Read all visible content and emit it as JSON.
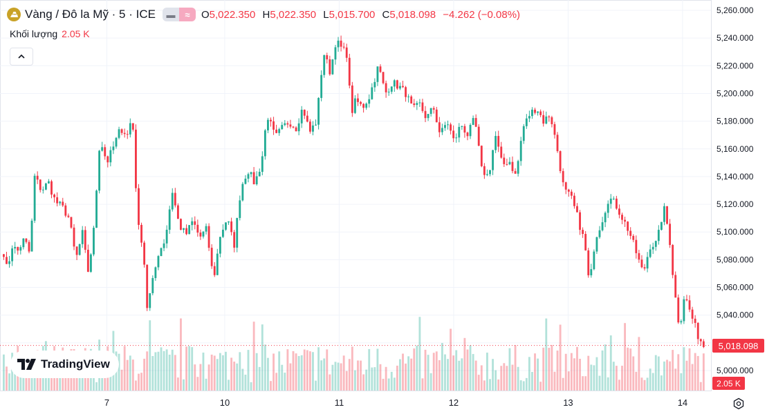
{
  "legend": {
    "symbol_icon": "gold-bars-icon",
    "title": "Vàng / Đô la Mỹ · 5 · ICE",
    "open_label": "O",
    "open": "5,022.350",
    "high_label": "H",
    "high": "5,022.350",
    "low_label": "L",
    "low": "5,015.700",
    "close_label": "C",
    "close": "5,018.098",
    "change": "−4.262 (−0.08%)"
  },
  "volume_legend": {
    "label": "Khối lượng",
    "value": "2.05 K"
  },
  "brand": {
    "name": "TradingView"
  },
  "last_price_tag": "5,018.098",
  "last_volume_tag": "2.05 K",
  "colors": {
    "up": "#22ab94",
    "down": "#f23645",
    "grid": "#f0f3fa",
    "text": "#131722"
  },
  "chart_data": {
    "type": "candlestick",
    "interval": "5",
    "y_ticks": [
      "5,000.000",
      "5,020.000",
      "5,040.000",
      "5,060.000",
      "5,080.000",
      "5,100.000",
      "5,120.000",
      "5,140.000",
      "5,160.000",
      "5,180.000",
      "5,200.000",
      "5,220.000",
      "5,240.000",
      "5,260.000"
    ],
    "ylim": [
      5000,
      5260
    ],
    "x_ticks": [
      "7",
      "10",
      "11",
      "12",
      "13",
      "14"
    ],
    "x_tick_positions": [
      0.15,
      0.32,
      0.485,
      0.65,
      0.815,
      0.98
    ],
    "close_series": [
      {
        "t": 0.0,
        "v": 5085
      },
      {
        "t": 0.005,
        "v": 5072
      },
      {
        "t": 0.012,
        "v": 5090
      },
      {
        "t": 0.02,
        "v": 5086
      },
      {
        "t": 0.03,
        "v": 5095
      },
      {
        "t": 0.038,
        "v": 5084
      },
      {
        "t": 0.045,
        "v": 5140
      },
      {
        "t": 0.055,
        "v": 5130
      },
      {
        "t": 0.065,
        "v": 5136
      },
      {
        "t": 0.075,
        "v": 5122
      },
      {
        "t": 0.085,
        "v": 5118
      },
      {
        "t": 0.095,
        "v": 5110
      },
      {
        "t": 0.105,
        "v": 5080
      },
      {
        "t": 0.115,
        "v": 5100
      },
      {
        "t": 0.122,
        "v": 5070
      },
      {
        "t": 0.13,
        "v": 5095
      },
      {
        "t": 0.14,
        "v": 5168
      },
      {
        "t": 0.15,
        "v": 5150
      },
      {
        "t": 0.16,
        "v": 5162
      },
      {
        "t": 0.17,
        "v": 5175
      },
      {
        "t": 0.18,
        "v": 5170
      },
      {
        "t": 0.187,
        "v": 5185
      },
      {
        "t": 0.195,
        "v": 5105
      },
      {
        "t": 0.203,
        "v": 5090
      },
      {
        "t": 0.208,
        "v": 5045
      },
      {
        "t": 0.215,
        "v": 5060
      },
      {
        "t": 0.225,
        "v": 5085
      },
      {
        "t": 0.235,
        "v": 5095
      },
      {
        "t": 0.245,
        "v": 5130
      },
      {
        "t": 0.255,
        "v": 5105
      },
      {
        "t": 0.265,
        "v": 5098
      },
      {
        "t": 0.275,
        "v": 5108
      },
      {
        "t": 0.285,
        "v": 5096
      },
      {
        "t": 0.295,
        "v": 5102
      },
      {
        "t": 0.305,
        "v": 5065
      },
      {
        "t": 0.315,
        "v": 5098
      },
      {
        "t": 0.325,
        "v": 5110
      },
      {
        "t": 0.335,
        "v": 5090
      },
      {
        "t": 0.345,
        "v": 5132
      },
      {
        "t": 0.355,
        "v": 5145
      },
      {
        "t": 0.365,
        "v": 5135
      },
      {
        "t": 0.375,
        "v": 5150
      },
      {
        "t": 0.383,
        "v": 5185
      },
      {
        "t": 0.395,
        "v": 5168
      },
      {
        "t": 0.405,
        "v": 5175
      },
      {
        "t": 0.415,
        "v": 5180
      },
      {
        "t": 0.425,
        "v": 5175
      },
      {
        "t": 0.435,
        "v": 5190
      },
      {
        "t": 0.445,
        "v": 5172
      },
      {
        "t": 0.455,
        "v": 5180
      },
      {
        "t": 0.465,
        "v": 5230
      },
      {
        "t": 0.475,
        "v": 5215
      },
      {
        "t": 0.483,
        "v": 5238
      },
      {
        "t": 0.492,
        "v": 5232
      },
      {
        "t": 0.5,
        "v": 5228
      },
      {
        "t": 0.505,
        "v": 5185
      },
      {
        "t": 0.512,
        "v": 5195
      },
      {
        "t": 0.522,
        "v": 5190
      },
      {
        "t": 0.532,
        "v": 5198
      },
      {
        "t": 0.545,
        "v": 5220
      },
      {
        "t": 0.555,
        "v": 5200
      },
      {
        "t": 0.565,
        "v": 5208
      },
      {
        "t": 0.575,
        "v": 5205
      },
      {
        "t": 0.585,
        "v": 5200
      },
      {
        "t": 0.595,
        "v": 5188
      },
      {
        "t": 0.605,
        "v": 5192
      },
      {
        "t": 0.615,
        "v": 5182
      },
      {
        "t": 0.625,
        "v": 5190
      },
      {
        "t": 0.635,
        "v": 5170
      },
      {
        "t": 0.645,
        "v": 5180
      },
      {
        "t": 0.655,
        "v": 5165
      },
      {
        "t": 0.665,
        "v": 5178
      },
      {
        "t": 0.675,
        "v": 5170
      },
      {
        "t": 0.685,
        "v": 5182
      },
      {
        "t": 0.695,
        "v": 5145
      },
      {
        "t": 0.705,
        "v": 5140
      },
      {
        "t": 0.715,
        "v": 5170
      },
      {
        "t": 0.725,
        "v": 5148
      },
      {
        "t": 0.735,
        "v": 5152
      },
      {
        "t": 0.745,
        "v": 5140
      },
      {
        "t": 0.755,
        "v": 5175
      },
      {
        "t": 0.765,
        "v": 5185
      },
      {
        "t": 0.775,
        "v": 5190
      },
      {
        "t": 0.785,
        "v": 5180
      },
      {
        "t": 0.795,
        "v": 5185
      },
      {
        "t": 0.805,
        "v": 5160
      },
      {
        "t": 0.815,
        "v": 5130
      },
      {
        "t": 0.825,
        "v": 5125
      },
      {
        "t": 0.835,
        "v": 5110
      },
      {
        "t": 0.845,
        "v": 5092
      },
      {
        "t": 0.852,
        "v": 5060
      },
      {
        "t": 0.86,
        "v": 5095
      },
      {
        "t": 0.87,
        "v": 5108
      },
      {
        "t": 0.88,
        "v": 5125
      },
      {
        "t": 0.89,
        "v": 5120
      },
      {
        "t": 0.9,
        "v": 5110
      },
      {
        "t": 0.91,
        "v": 5100
      },
      {
        "t": 0.92,
        "v": 5085
      },
      {
        "t": 0.93,
        "v": 5070
      },
      {
        "t": 0.94,
        "v": 5090
      },
      {
        "t": 0.95,
        "v": 5092
      },
      {
        "t": 0.96,
        "v": 5118
      },
      {
        "t": 0.968,
        "v": 5098
      },
      {
        "t": 0.975,
        "v": 5060
      },
      {
        "t": 0.983,
        "v": 5030
      },
      {
        "t": 0.99,
        "v": 5055
      },
      {
        "t": 1.0,
        "v": 5040
      },
      {
        "t": 1.01,
        "v": 5025
      },
      {
        "t": 1.018,
        "v": 5018.098
      }
    ]
  }
}
